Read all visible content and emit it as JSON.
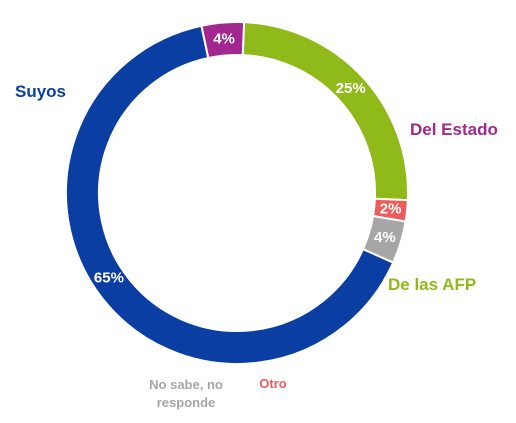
{
  "chart_data": {
    "type": "pie",
    "title": "",
    "categories": [
      "Suyos",
      "Del Estado",
      "De las AFP",
      "Otro",
      "No sabe, no responde"
    ],
    "values": [
      65,
      4,
      25,
      2,
      4
    ],
    "value_labels": [
      "65%",
      "4%",
      "25%",
      "2%",
      "4%"
    ],
    "colors": [
      "#0a3ea3",
      "#a2278f",
      "#8fba1a",
      "#ef5a5a",
      "#a6a6a6"
    ],
    "category_label_lines": [
      [
        "Suyos"
      ],
      [
        "Del Estado"
      ],
      [
        "De las AFP"
      ],
      [
        "Otro"
      ],
      [
        "No sabe, no",
        "responde"
      ]
    ],
    "donut": true,
    "legend": "none"
  }
}
